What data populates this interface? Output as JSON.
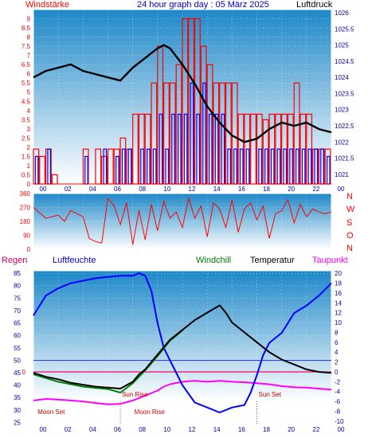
{
  "header": {
    "left_label": "Windstärke",
    "title": "24 hour graph day : 05 März 2025",
    "right_label": "Luftdruck"
  },
  "direction_labels": [
    "N",
    "W",
    "S",
    "O",
    "N"
  ],
  "bottom_header": {
    "regen": "Regen",
    "luftfeuchte": "Luftfeuchte",
    "windchill": "Windchill",
    "temperatur": "Temperatur",
    "taupunkt": "Taupunkt"
  },
  "colors": {
    "wind_bars": "#ff0000",
    "gust_bars": "#0000ff",
    "pressure": "#000000",
    "direction": "#ff0000",
    "humidity": "#0000ff",
    "temperature": "#000000",
    "windchill": "#008000",
    "dewpoint": "#ff00ff",
    "zero_line": "#ff0066",
    "axis_red": "#ff0000",
    "axis_blue": "#0000aa",
    "gradient_top": "#1e88c8",
    "gradient_bottom": "#ffffff"
  },
  "chart_data": [
    {
      "type": "bar",
      "title": "24 hour graph day : 05 März 2025",
      "x_ticks": [
        "00",
        "02",
        "04",
        "06",
        "08",
        "10",
        "12",
        "14",
        "16",
        "18",
        "20",
        "22",
        "00"
      ],
      "y_left_label": "Windstärke",
      "y_left_ticks": [
        "0",
        "0.5",
        "1",
        "1.5",
        "2",
        "2.5",
        "3",
        "3.5",
        "4",
        "4.5",
        "5",
        "5.5",
        "6",
        "6.5",
        "7",
        "7.5",
        "8",
        "8.5",
        "9"
      ],
      "y_left_range": [
        0,
        9.5
      ],
      "y_right_label": "Luftdruck",
      "y_right_ticks": [
        "1021",
        "1021.5",
        "1022",
        "1022.5",
        "1023",
        "1023.5",
        "1024",
        "1024.5",
        "1025",
        "1025.5",
        "1026"
      ],
      "y_right_range": [
        1020.7,
        1026.1
      ],
      "series": [
        {
          "name": "Windstärke",
          "type": "bar",
          "x": [
            0,
            0.5,
            1,
            1.5,
            2,
            2.5,
            3,
            3.5,
            4,
            4.5,
            5,
            5.5,
            6,
            6.5,
            7,
            7.5,
            8,
            8.5,
            9,
            9.5,
            10,
            10.5,
            11,
            11.5,
            12,
            12.5,
            13,
            13.5,
            14,
            14.5,
            15,
            15.5,
            16,
            16.5,
            17,
            17.5,
            18,
            18.5,
            19,
            19.5,
            20,
            20.5,
            21,
            21.5,
            22,
            22.5,
            23,
            23.5
          ],
          "values": [
            1.9,
            1.5,
            1.9,
            0.5,
            0,
            0,
            0,
            0,
            1.9,
            0,
            1.9,
            1.5,
            1.9,
            1.9,
            2.5,
            1.9,
            3.8,
            3.8,
            3.8,
            5.5,
            7.5,
            5.5,
            5.5,
            6.5,
            9,
            9,
            9,
            7.5,
            6.5,
            5.5,
            5.5,
            5.5,
            5.5,
            3.8,
            3.8,
            3.8,
            3.8,
            3.5,
            3.8,
            3.8,
            3.8,
            3.8,
            5.5,
            3.8,
            3.8,
            1.9,
            1.9,
            1.9
          ]
        },
        {
          "name": "Böen",
          "type": "bar",
          "x": [
            0,
            0.5,
            1,
            1.5,
            2,
            2.5,
            3,
            3.5,
            4,
            4.5,
            5,
            5.5,
            6,
            6.5,
            7,
            7.5,
            8,
            8.5,
            9,
            9.5,
            10,
            10.5,
            11,
            11.5,
            12,
            12.5,
            13,
            13.5,
            14,
            14.5,
            15,
            15.5,
            16,
            16.5,
            17,
            17.5,
            18,
            18.5,
            19,
            19.5,
            20,
            20.5,
            21,
            21.5,
            22,
            22.5,
            23,
            23.5
          ],
          "values": [
            1.5,
            0,
            1.9,
            0,
            0,
            0,
            0,
            0,
            1.5,
            0,
            0,
            1.9,
            0,
            1.5,
            1.9,
            1.9,
            0,
            1.9,
            1.9,
            1.9,
            3.8,
            1.9,
            3.8,
            3.8,
            3.8,
            5.5,
            3.8,
            5.5,
            3.8,
            3.8,
            3.8,
            1.9,
            1.9,
            1.9,
            1.9,
            0,
            1.9,
            1.9,
            1.9,
            1.9,
            1.9,
            1.9,
            1.9,
            1.9,
            1.9,
            1.9,
            1.9,
            1.5
          ]
        },
        {
          "name": "Luftdruck",
          "type": "line",
          "axis": "right",
          "x": [
            0,
            1,
            2,
            3,
            4,
            5,
            6,
            7,
            8,
            9,
            10,
            10.5,
            11,
            12,
            13,
            14,
            15,
            16,
            17,
            18,
            19,
            20,
            21,
            22,
            23,
            24
          ],
          "values": [
            1024.0,
            1024.2,
            1024.3,
            1024.4,
            1024.2,
            1024.1,
            1024.0,
            1023.9,
            1024.3,
            1024.6,
            1024.9,
            1025.0,
            1024.9,
            1024.4,
            1023.8,
            1023.1,
            1022.6,
            1022.2,
            1022.0,
            1022.1,
            1022.4,
            1022.6,
            1022.5,
            1022.6,
            1022.4,
            1022.3
          ]
        }
      ]
    },
    {
      "type": "line",
      "title": "",
      "x_ticks": [
        "00",
        "02",
        "04",
        "06",
        "08",
        "10",
        "12",
        "14",
        "16",
        "18",
        "20",
        "22",
        "00"
      ],
      "y_left_ticks": [
        "0",
        "90",
        "180",
        "270",
        "360"
      ],
      "y_range": [
        0,
        360
      ],
      "series": [
        {
          "name": "Windrichtung",
          "x": [
            0,
            1,
            2,
            2.5,
            3,
            3.5,
            4,
            4.5,
            5,
            5.5,
            6,
            6.5,
            7,
            7.5,
            8,
            8.5,
            9,
            9.5,
            10,
            10.5,
            11,
            11.5,
            12,
            12.5,
            13,
            13.5,
            14,
            14.5,
            15,
            15.5,
            16,
            16.5,
            17,
            17.5,
            18,
            18.5,
            19,
            19.5,
            20,
            20.5,
            21,
            21.5,
            22,
            22.5,
            23,
            23.5,
            24
          ],
          "values": [
            270,
            200,
            220,
            180,
            250,
            230,
            210,
            70,
            50,
            40,
            330,
            280,
            160,
            300,
            30,
            250,
            60,
            290,
            120,
            310,
            200,
            240,
            140,
            330,
            200,
            280,
            80,
            300,
            260,
            140,
            320,
            110,
            260,
            300,
            190,
            280,
            70,
            230,
            250,
            320,
            170,
            290,
            210,
            260,
            240,
            230,
            240
          ]
        }
      ]
    },
    {
      "type": "line",
      "title": "",
      "x_ticks": [
        "00",
        "02",
        "04",
        "06",
        "08",
        "10",
        "12",
        "14",
        "16",
        "18",
        "20",
        "22",
        "00"
      ],
      "y_left_label": "Luftfeuchte",
      "y_left_ticks": [
        "25",
        "30",
        "35",
        "40",
        "45",
        "50",
        "55",
        "60",
        "65",
        "70",
        "75",
        "80",
        "85"
      ],
      "y_left_range": [
        24.5,
        86
      ],
      "y_right_label": "Temperatur",
      "y_right_ticks": [
        "-10",
        "-8",
        "-6",
        "-4",
        "-2",
        "0",
        "2",
        "4",
        "6",
        "8",
        "10",
        "12",
        "14",
        "16",
        "18",
        "20"
      ],
      "y_right_range": [
        -10.5,
        20.5
      ],
      "zero_line_label": "0",
      "annotations": [
        {
          "text": "Moon Set",
          "x": 2.0
        },
        {
          "text": "Sun Rise",
          "x": 7.0
        },
        {
          "text": "Moon Rise",
          "x": 8.0
        },
        {
          "text": "Sun Set",
          "x": 18.0
        }
      ],
      "series": [
        {
          "name": "Luftfeuchte",
          "axis": "left",
          "x": [
            0,
            0.5,
            1,
            2,
            3,
            4,
            5,
            6,
            7,
            8,
            8.5,
            9,
            9.5,
            10,
            10.5,
            11,
            11.5,
            12,
            13,
            14,
            15,
            16,
            17,
            17.5,
            18,
            18.5,
            19,
            20,
            21,
            22,
            23,
            24
          ],
          "values": [
            68,
            72,
            76,
            79,
            81,
            82,
            83,
            83.5,
            84,
            84,
            85,
            84,
            78,
            65,
            55,
            50,
            45,
            40,
            33,
            31,
            29,
            31,
            32,
            37,
            44,
            52,
            57,
            61,
            69,
            72,
            76,
            81
          ]
        },
        {
          "name": "Temperatur",
          "axis": "right",
          "x": [
            0,
            1,
            2,
            3,
            4,
            5,
            6,
            7,
            8,
            8.5,
            9,
            9.5,
            10,
            11,
            12,
            13,
            14,
            15,
            15.5,
            16,
            17,
            18,
            19,
            20,
            21,
            22,
            23,
            24
          ],
          "values": [
            -0.2,
            -1.0,
            -1.5,
            -2.2,
            -2.6,
            -3.0,
            -3.2,
            -3.4,
            -2.0,
            -0.5,
            0.5,
            2.0,
            3.5,
            6.5,
            8.5,
            10.5,
            12.0,
            13.5,
            12.0,
            10.0,
            8.0,
            6.0,
            4.0,
            2.5,
            1.5,
            0.5,
            0.0,
            -0.2
          ]
        },
        {
          "name": "Windchill",
          "axis": "right",
          "x": [
            0,
            2,
            4,
            6,
            7,
            8,
            9,
            10,
            11,
            12
          ],
          "values": [
            -0.5,
            -2.0,
            -3.0,
            -3.5,
            -4.2,
            -2.3,
            0.3,
            3.2,
            6.3,
            8.4
          ]
        },
        {
          "name": "Taupunkt",
          "axis": "right",
          "x": [
            0,
            1,
            2,
            3,
            4,
            5,
            6,
            7,
            8,
            9,
            10,
            10.5,
            11,
            12,
            13,
            14,
            15,
            16,
            17,
            18,
            19,
            20,
            21,
            22,
            23,
            24
          ],
          "values": [
            -5.8,
            -5.5,
            -5.6,
            -5.8,
            -6.0,
            -6.3,
            -6.6,
            -6.5,
            -5.8,
            -4.8,
            -3.8,
            -3.0,
            -2.5,
            -2.0,
            -1.8,
            -2.0,
            -1.8,
            -2.0,
            -2.1,
            -2.3,
            -2.5,
            -2.9,
            -3.1,
            -3.2,
            -3.4,
            -3.6
          ]
        }
      ]
    }
  ]
}
